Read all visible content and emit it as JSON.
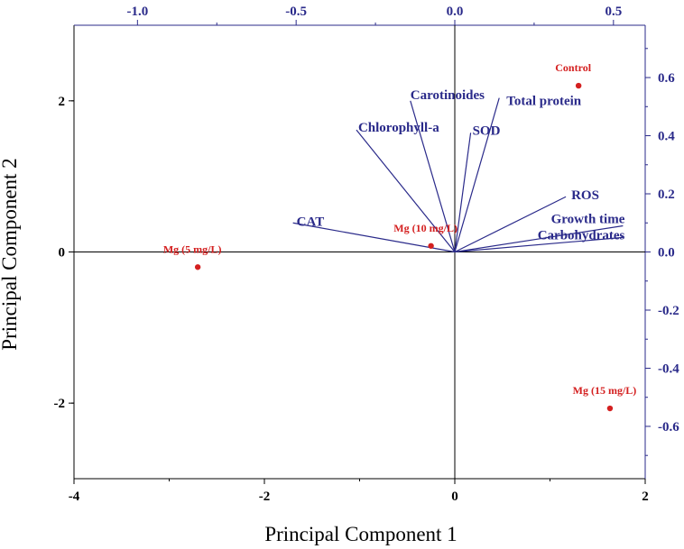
{
  "chart_data": {
    "type": "scatter",
    "subtype": "pca-biplot",
    "xlabel": "Principal Component 1",
    "ylabel": "Principal Component 2",
    "xlim": [
      -4,
      2
    ],
    "ylim": [
      -3,
      3
    ],
    "xticks": [
      "-4",
      "-2",
      "0",
      "2"
    ],
    "yticks": [
      "-2",
      "0",
      "2"
    ],
    "secondary_xlim": [
      -1.2,
      0.6
    ],
    "secondary_ylim": [
      -0.78,
      0.78
    ],
    "secondary_xticks": [
      "-1.0",
      "-0.5",
      "0.0",
      "0.5"
    ],
    "secondary_yticks": [
      "0.6",
      "0.4",
      "0.2",
      "0.0",
      "-0.2",
      "-0.4",
      "-0.6"
    ],
    "scores": [
      {
        "label": "Control",
        "x": 1.3,
        "y": 2.2
      },
      {
        "label": "Mg (5 mg/L)",
        "x": -2.7,
        "y": -0.2
      },
      {
        "label": "Mg (10 mg/L)",
        "x": -0.25,
        "y": 0.08
      },
      {
        "label": "Mg (15 mg/L)",
        "x": 1.63,
        "y": -2.07
      }
    ],
    "loadings": [
      {
        "label": "Carotinoides",
        "x": -0.14,
        "y": 0.52
      },
      {
        "label": "Total protein",
        "x": 0.14,
        "y": 0.53
      },
      {
        "label": "Chlorophyll-a",
        "x": -0.31,
        "y": 0.42
      },
      {
        "label": "SOD",
        "x": 0.05,
        "y": 0.41
      },
      {
        "label": "ROS",
        "x": 0.35,
        "y": 0.19
      },
      {
        "label": "Growth time",
        "x": 0.53,
        "y": 0.09
      },
      {
        "label": "Carbohydrates",
        "x": 0.53,
        "y": 0.05
      },
      {
        "label": "CAT",
        "x": -0.51,
        "y": 0.1
      }
    ],
    "grid": false,
    "colors": {
      "axes": "#000000",
      "secondary_axes": "#2a2a8a",
      "loadings": "#2a2a8a",
      "scores": "#d42020"
    }
  }
}
